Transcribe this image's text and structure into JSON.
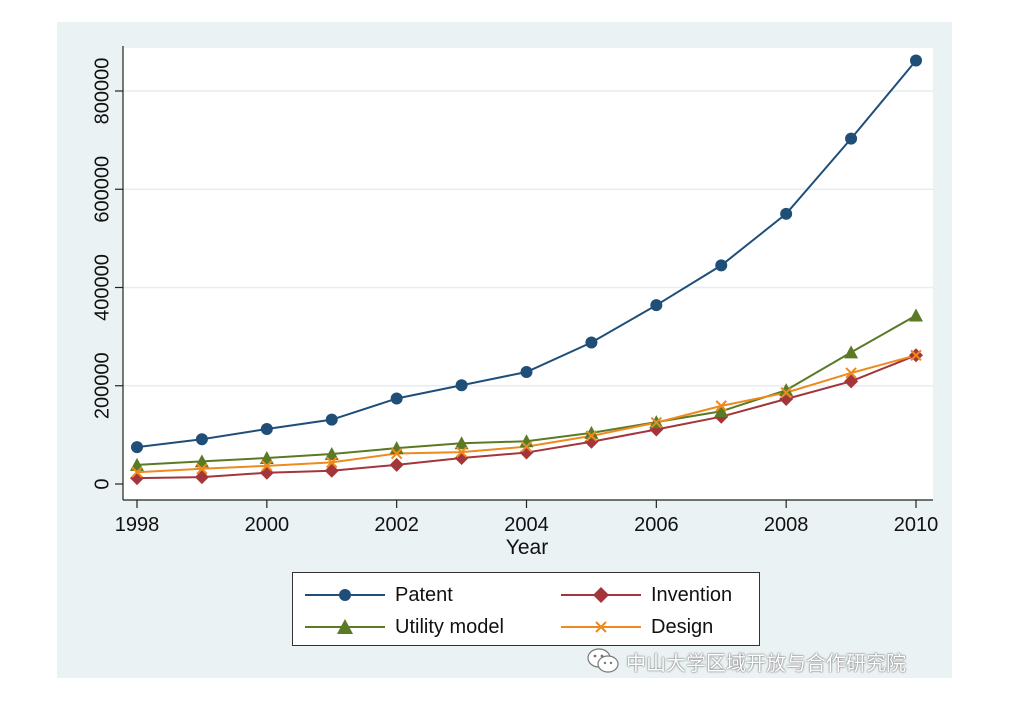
{
  "chart_data": {
    "type": "line",
    "xlabel": "Year",
    "ylabel": "",
    "x": [
      1998,
      1999,
      2000,
      2001,
      2002,
      2003,
      2004,
      2005,
      2006,
      2007,
      2008,
      2009,
      2010
    ],
    "xlim": [
      1998,
      2010
    ],
    "ylim": [
      0,
      900000
    ],
    "xticks": [
      "1998",
      "2000",
      "2002",
      "2004",
      "2006",
      "2008",
      "2010"
    ],
    "yticks": [
      "0",
      "200000",
      "400000",
      "600000",
      "800000"
    ],
    "grid": "horizontal",
    "legend_position": "bottom",
    "series": [
      {
        "name": "Patent",
        "marker": "circle",
        "color": "#1f4e79",
        "values": [
          75000,
          91000,
          112000,
          131000,
          174000,
          201000,
          228000,
          288000,
          364000,
          445000,
          550000,
          703000,
          862000
        ]
      },
      {
        "name": "Invention",
        "marker": "diamond",
        "color": "#a3353b",
        "values": [
          12000,
          14000,
          23000,
          27000,
          39000,
          53000,
          64000,
          86000,
          111000,
          137000,
          173000,
          209000,
          262000
        ]
      },
      {
        "name": "Utility model",
        "marker": "triangle",
        "color": "#5b7a26",
        "values": [
          39000,
          46000,
          53000,
          61000,
          73000,
          83000,
          87000,
          104000,
          126000,
          148000,
          191000,
          268000,
          343000
        ]
      },
      {
        "name": "Design",
        "marker": "x",
        "color": "#ee8a1e",
        "values": [
          24000,
          31000,
          37000,
          44000,
          62000,
          65000,
          76000,
          98000,
          125000,
          159000,
          186000,
          226000,
          262000
        ]
      }
    ]
  },
  "legend": {
    "items": [
      {
        "label": "Patent"
      },
      {
        "label": "Invention"
      },
      {
        "label": "Utility model"
      },
      {
        "label": "Design"
      }
    ]
  },
  "watermark": {
    "text": "中山大学区域开放与合作研究院",
    "icon": "wechat-icon"
  }
}
